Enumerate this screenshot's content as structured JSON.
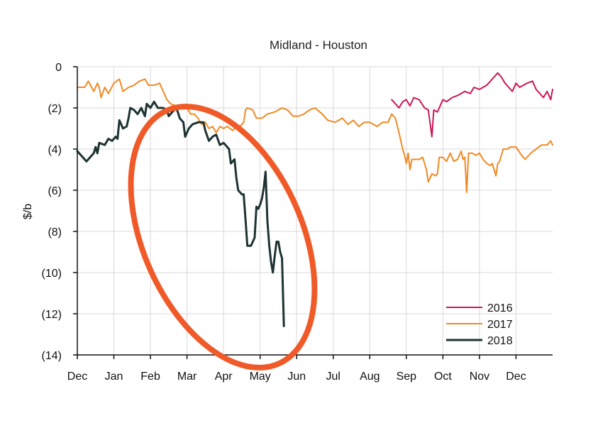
{
  "chart_data": {
    "type": "line",
    "title": "Midland - Houston",
    "xlabel": "",
    "ylabel": "$/b",
    "x_ticks": [
      "Dec",
      "Jan",
      "Feb",
      "Mar",
      "Apr",
      "May",
      "Jun",
      "Jul",
      "Aug",
      "Sep",
      "Oct",
      "Nov",
      "Dec"
    ],
    "y_ticks": [
      0,
      -2,
      -4,
      -6,
      -8,
      -10,
      -12,
      -14
    ],
    "y_tick_labels": [
      "0",
      "(2)",
      "(4)",
      "(6)",
      "(8)",
      "(10)",
      "(12)",
      "(14)"
    ],
    "ylim": [
      -14,
      0
    ],
    "xlim": [
      0,
      13
    ],
    "grid": true,
    "legend_position": "bottom-right",
    "highlight": {
      "type": "ellipse",
      "color": "#f05a28"
    },
    "series": [
      {
        "name": "2016",
        "color": "#c9185b",
        "points": [
          [
            8.6,
            -1.6
          ],
          [
            8.7,
            -1.8
          ],
          [
            8.8,
            -2.0
          ],
          [
            8.9,
            -1.7
          ],
          [
            9.0,
            -1.6
          ],
          [
            9.1,
            -1.9
          ],
          [
            9.2,
            -1.5
          ],
          [
            9.35,
            -1.6
          ],
          [
            9.5,
            -2.0
          ],
          [
            9.6,
            -2.1
          ],
          [
            9.7,
            -3.4
          ],
          [
            9.75,
            -2.1
          ],
          [
            9.85,
            -2.2
          ],
          [
            9.95,
            -1.8
          ],
          [
            10.0,
            -1.6
          ],
          [
            10.1,
            -1.7
          ],
          [
            10.25,
            -1.5
          ],
          [
            10.4,
            -1.4
          ],
          [
            10.6,
            -1.2
          ],
          [
            10.75,
            -1.3
          ],
          [
            10.85,
            -1.0
          ],
          [
            11.0,
            -1.1
          ],
          [
            11.2,
            -0.9
          ],
          [
            11.3,
            -0.7
          ],
          [
            11.5,
            -0.3
          ],
          [
            11.6,
            -0.5
          ],
          [
            11.7,
            -0.8
          ],
          [
            11.8,
            -1.0
          ],
          [
            11.9,
            -1.2
          ],
          [
            12.0,
            -0.8
          ],
          [
            12.1,
            -1.0
          ],
          [
            12.2,
            -0.9
          ],
          [
            12.3,
            -0.8
          ],
          [
            12.45,
            -0.7
          ],
          [
            12.55,
            -1.1
          ],
          [
            12.65,
            -1.3
          ],
          [
            12.75,
            -1.5
          ],
          [
            12.85,
            -1.2
          ],
          [
            12.95,
            -1.6
          ],
          [
            13.0,
            -1.1
          ]
        ]
      },
      {
        "name": "2017",
        "color": "#f08a24",
        "points": [
          [
            0.0,
            -1.0
          ],
          [
            0.2,
            -1.0
          ],
          [
            0.3,
            -0.7
          ],
          [
            0.45,
            -1.2
          ],
          [
            0.55,
            -0.8
          ],
          [
            0.6,
            -1.0
          ],
          [
            0.65,
            -1.5
          ],
          [
            0.75,
            -1.0
          ],
          [
            0.85,
            -1.3
          ],
          [
            1.0,
            -0.8
          ],
          [
            1.15,
            -0.6
          ],
          [
            1.25,
            -1.2
          ],
          [
            1.4,
            -1.0
          ],
          [
            1.55,
            -0.9
          ],
          [
            1.7,
            -0.7
          ],
          [
            1.85,
            -0.6
          ],
          [
            1.95,
            -0.9
          ],
          [
            2.1,
            -0.9
          ],
          [
            2.25,
            -0.8
          ],
          [
            2.35,
            -1.2
          ],
          [
            2.45,
            -1.6
          ],
          [
            2.55,
            -1.8
          ],
          [
            2.7,
            -1.9
          ],
          [
            2.85,
            -2.0
          ],
          [
            3.0,
            -2.0
          ],
          [
            3.1,
            -2.3
          ],
          [
            3.2,
            -2.3
          ],
          [
            3.3,
            -2.5
          ],
          [
            3.4,
            -2.8
          ],
          [
            3.5,
            -2.7
          ],
          [
            3.6,
            -3.0
          ],
          [
            3.7,
            -2.9
          ],
          [
            3.8,
            -3.2
          ],
          [
            3.9,
            -2.9
          ],
          [
            4.0,
            -3.0
          ],
          [
            4.1,
            -2.9
          ],
          [
            4.25,
            -3.1
          ],
          [
            4.35,
            -2.9
          ],
          [
            4.45,
            -2.9
          ],
          [
            4.55,
            -2.7
          ],
          [
            4.6,
            -2.1
          ],
          [
            4.65,
            -2.0
          ],
          [
            4.8,
            -2.1
          ],
          [
            4.9,
            -2.5
          ],
          [
            5.05,
            -2.5
          ],
          [
            5.2,
            -2.3
          ],
          [
            5.4,
            -2.2
          ],
          [
            5.6,
            -2.0
          ],
          [
            5.75,
            -2.1
          ],
          [
            5.9,
            -2.4
          ],
          [
            6.05,
            -2.4
          ],
          [
            6.2,
            -2.3
          ],
          [
            6.35,
            -2.1
          ],
          [
            6.5,
            -2.0
          ],
          [
            6.7,
            -2.3
          ],
          [
            6.85,
            -2.6
          ],
          [
            7.05,
            -2.7
          ],
          [
            7.25,
            -2.5
          ],
          [
            7.4,
            -2.8
          ],
          [
            7.55,
            -2.6
          ],
          [
            7.7,
            -2.9
          ],
          [
            7.85,
            -2.7
          ],
          [
            8.0,
            -2.7
          ],
          [
            8.2,
            -2.9
          ],
          [
            8.35,
            -2.7
          ],
          [
            8.5,
            -2.7
          ],
          [
            8.6,
            -2.3
          ],
          [
            8.7,
            -2.5
          ],
          [
            8.8,
            -3.2
          ],
          [
            8.9,
            -4.0
          ],
          [
            8.95,
            -4.3
          ],
          [
            9.0,
            -4.7
          ],
          [
            9.05,
            -4.2
          ],
          [
            9.1,
            -5.0
          ],
          [
            9.15,
            -4.5
          ],
          [
            9.25,
            -4.5
          ],
          [
            9.35,
            -4.5
          ],
          [
            9.45,
            -4.4
          ],
          [
            9.55,
            -5.0
          ],
          [
            9.6,
            -5.6
          ],
          [
            9.7,
            -5.2
          ],
          [
            9.8,
            -5.3
          ],
          [
            9.85,
            -5.2
          ],
          [
            9.9,
            -4.4
          ],
          [
            10.0,
            -4.4
          ],
          [
            10.1,
            -4.6
          ],
          [
            10.2,
            -4.2
          ],
          [
            10.3,
            -4.6
          ],
          [
            10.4,
            -4.5
          ],
          [
            10.5,
            -4.1
          ],
          [
            10.55,
            -4.5
          ],
          [
            10.6,
            -4.4
          ],
          [
            10.65,
            -6.1
          ],
          [
            10.7,
            -4.2
          ],
          [
            10.8,
            -4.2
          ],
          [
            10.9,
            -4.3
          ],
          [
            11.0,
            -4.2
          ],
          [
            11.1,
            -4.5
          ],
          [
            11.2,
            -4.7
          ],
          [
            11.3,
            -4.8
          ],
          [
            11.35,
            -4.7
          ],
          [
            11.45,
            -5.3
          ],
          [
            11.5,
            -4.7
          ],
          [
            11.55,
            -4.6
          ],
          [
            11.65,
            -4.0
          ],
          [
            11.75,
            -4.0
          ],
          [
            11.85,
            -3.9
          ],
          [
            12.0,
            -3.9
          ],
          [
            12.15,
            -4.3
          ],
          [
            12.25,
            -4.5
          ],
          [
            12.4,
            -4.2
          ],
          [
            12.55,
            -4.0
          ],
          [
            12.7,
            -3.8
          ],
          [
            12.85,
            -3.8
          ],
          [
            12.95,
            -3.6
          ],
          [
            13.0,
            -3.8
          ]
        ]
      },
      {
        "name": "2018",
        "color": "#1e3333",
        "points": [
          [
            0.0,
            -4.1
          ],
          [
            0.1,
            -4.3
          ],
          [
            0.25,
            -4.6
          ],
          [
            0.35,
            -4.4
          ],
          [
            0.45,
            -4.2
          ],
          [
            0.5,
            -3.9
          ],
          [
            0.55,
            -4.2
          ],
          [
            0.6,
            -3.7
          ],
          [
            0.75,
            -3.8
          ],
          [
            0.85,
            -3.5
          ],
          [
            0.95,
            -3.6
          ],
          [
            1.05,
            -3.4
          ],
          [
            1.1,
            -3.5
          ],
          [
            1.15,
            -2.6
          ],
          [
            1.25,
            -3.0
          ],
          [
            1.35,
            -2.9
          ],
          [
            1.4,
            -2.5
          ],
          [
            1.45,
            -2.0
          ],
          [
            1.55,
            -2.1
          ],
          [
            1.65,
            -2.3
          ],
          [
            1.75,
            -2.0
          ],
          [
            1.85,
            -2.4
          ],
          [
            1.9,
            -1.8
          ],
          [
            2.0,
            -2.0
          ],
          [
            2.1,
            -1.7
          ],
          [
            2.2,
            -2.0
          ],
          [
            2.35,
            -2.0
          ],
          [
            2.45,
            -2.1
          ],
          [
            2.5,
            -2.4
          ],
          [
            2.6,
            -2.2
          ],
          [
            2.7,
            -2.0
          ],
          [
            2.75,
            -2.2
          ],
          [
            2.8,
            -2.5
          ],
          [
            2.9,
            -2.7
          ],
          [
            2.95,
            -3.4
          ],
          [
            3.05,
            -3.0
          ],
          [
            3.15,
            -2.8
          ],
          [
            3.3,
            -2.7
          ],
          [
            3.45,
            -2.7
          ],
          [
            3.5,
            -3.1
          ],
          [
            3.6,
            -3.6
          ],
          [
            3.7,
            -3.4
          ],
          [
            3.8,
            -3.3
          ],
          [
            3.9,
            -3.8
          ],
          [
            4.0,
            -3.7
          ],
          [
            4.15,
            -4.0
          ],
          [
            4.2,
            -4.7
          ],
          [
            4.3,
            -4.5
          ],
          [
            4.35,
            -5.4
          ],
          [
            4.4,
            -6.0
          ],
          [
            4.5,
            -6.2
          ],
          [
            4.55,
            -6.2
          ],
          [
            4.6,
            -7.4
          ],
          [
            4.65,
            -8.7
          ],
          [
            4.75,
            -8.7
          ],
          [
            4.85,
            -8.3
          ],
          [
            4.9,
            -6.8
          ],
          [
            4.95,
            -6.9
          ],
          [
            5.0,
            -6.7
          ],
          [
            5.05,
            -6.4
          ],
          [
            5.1,
            -5.9
          ],
          [
            5.15,
            -5.1
          ],
          [
            5.2,
            -7.5
          ],
          [
            5.25,
            -8.7
          ],
          [
            5.3,
            -9.5
          ],
          [
            5.35,
            -10.0
          ],
          [
            5.4,
            -9.2
          ],
          [
            5.45,
            -8.5
          ],
          [
            5.5,
            -8.5
          ],
          [
            5.55,
            -9.0
          ],
          [
            5.6,
            -9.3
          ],
          [
            5.65,
            -12.6
          ]
        ]
      }
    ]
  }
}
